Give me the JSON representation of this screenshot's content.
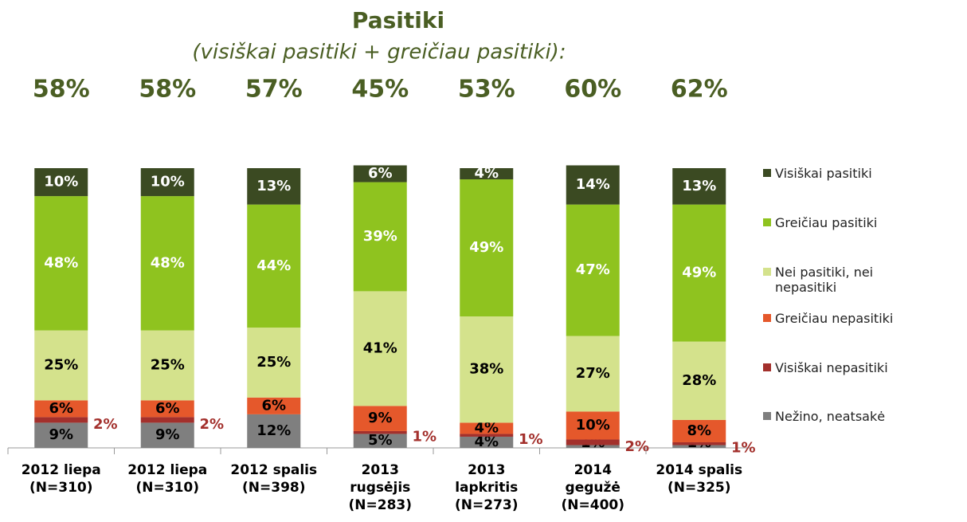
{
  "chart_data": {
    "type": "stacked-bar",
    "title": "Pasitiki",
    "subtitle": "(visiškai pasitiki + greičiau pasitiki):",
    "categories": [
      [
        "2012 liepa",
        "(N=310)"
      ],
      [
        "2012 liepa",
        "(N=310)"
      ],
      [
        "2012 spalis",
        "(N=398)"
      ],
      [
        "2013",
        "rugsėjis",
        "(N=283)"
      ],
      [
        "2013",
        "lapkritis",
        "(N=273)"
      ],
      [
        "2014",
        "gegužė",
        "(N=400)"
      ],
      [
        "2014 spalis",
        "(N=325)"
      ]
    ],
    "totals": {
      "values": [
        58,
        58,
        57,
        45,
        53,
        60,
        62
      ],
      "value_labels": [
        "58%",
        "58%",
        "57%",
        "45%",
        "53%",
        "60%",
        "62%"
      ]
    },
    "ylim": [
      0,
      100
    ],
    "series": [
      {
        "name": "Nežino, neatsakė",
        "color": "#7f7f7f",
        "values": [
          9,
          9,
          12,
          5,
          4,
          1,
          1
        ],
        "value_labels": [
          "9%",
          "9%",
          "12%",
          "5%",
          "4%",
          "1%",
          "1%"
        ]
      },
      {
        "name": "Visiškai nepasitiki",
        "color": "#a3302c",
        "values": [
          2,
          2,
          0,
          1,
          1,
          2,
          1
        ],
        "value_labels": [
          "2%",
          "2%",
          null,
          "1%",
          "1%",
          "2%",
          "1%"
        ]
      },
      {
        "name": "Greičiau nepasitiki",
        "color": "#e5582b",
        "values": [
          6,
          6,
          6,
          9,
          4,
          10,
          8
        ],
        "value_labels": [
          "6%",
          "6%",
          "6%",
          "9%",
          "4%",
          "10%",
          "8%"
        ]
      },
      {
        "name": "Nei pasitiki, nei nepasitiki",
        "color": "#d4e28c",
        "values": [
          25,
          25,
          25,
          41,
          38,
          27,
          28
        ],
        "value_labels": [
          "25%",
          "25%",
          "25%",
          "41%",
          "38%",
          "27%",
          "28%"
        ]
      },
      {
        "name": "Greičiau pasitiki",
        "color": "#8fc31f",
        "values": [
          48,
          48,
          44,
          39,
          49,
          47,
          49
        ],
        "value_labels": [
          "48%",
          "48%",
          "44%",
          "39%",
          "49%",
          "47%",
          "49%"
        ]
      },
      {
        "name": "Visiškai pasitiki",
        "color": "#3b4a22",
        "values": [
          10,
          10,
          13,
          6,
          4,
          14,
          13
        ],
        "value_labels": [
          "10%",
          "10%",
          "13%",
          "6%",
          "4%",
          "14%",
          "13%"
        ]
      }
    ]
  }
}
